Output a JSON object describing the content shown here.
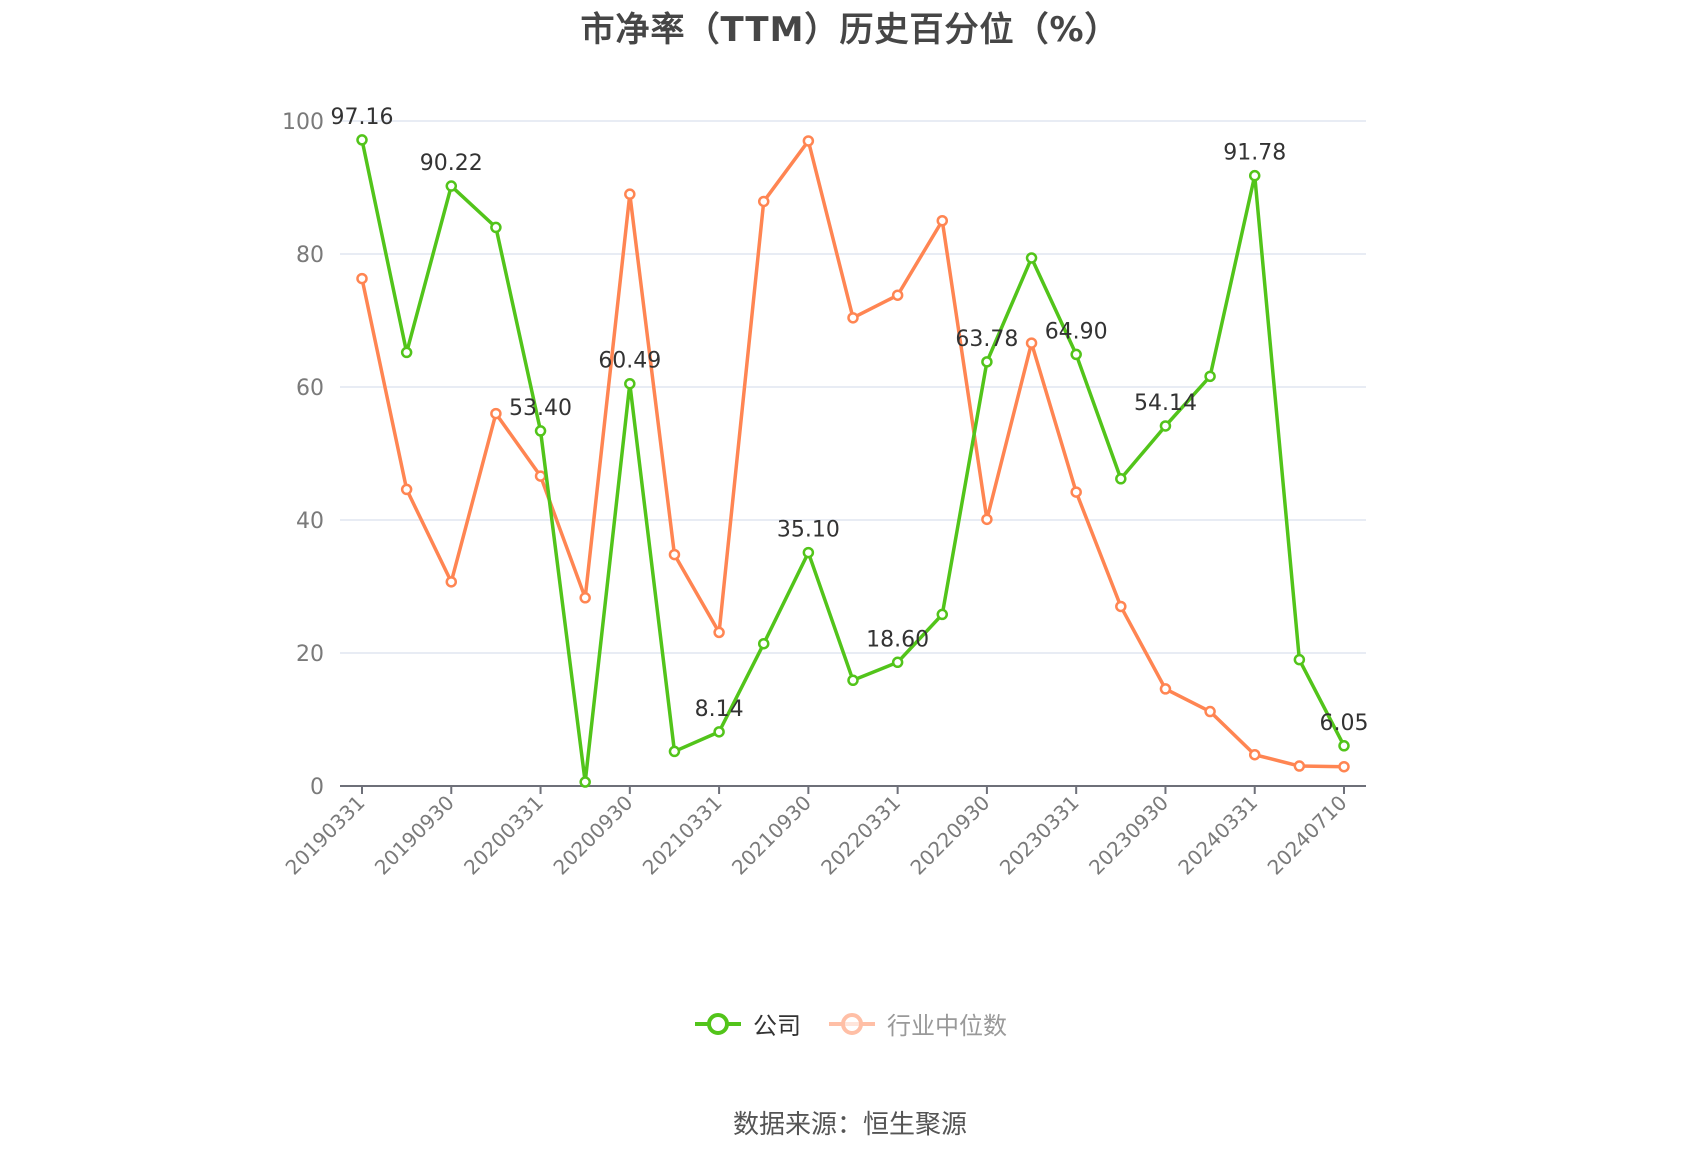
{
  "title": "市净率（TTM）历史百分位（%）",
  "legend": {
    "company_label": "公司",
    "industry_label": "行业中位数"
  },
  "source": "数据来源：恒生聚源",
  "colors": {
    "company": "#52c41a",
    "industry": "#ff8552",
    "industry_legend": "#ffbfa6",
    "grid": "#e0e6f1",
    "axis": "#6e7079"
  },
  "chart_data": {
    "type": "line",
    "title": "市净率（TTM）历史百分位（%）",
    "xlabel": "",
    "ylabel": "",
    "ylim": [
      0,
      100
    ],
    "yticks": [
      0,
      20,
      40,
      60,
      80,
      100
    ],
    "grid": true,
    "legend_position": "bottom",
    "x": [
      "20190331",
      "20190630",
      "20190930",
      "20191231",
      "20200331",
      "20200630",
      "20200930",
      "20201231",
      "20210331",
      "20210630",
      "20210930",
      "20211231",
      "20220331",
      "20220630",
      "20220930",
      "20221231",
      "20230331",
      "20230630",
      "20230930",
      "20231231",
      "20240331",
      "20240630",
      "20240710"
    ],
    "x_tick_labels": [
      "20190331",
      "20190930",
      "20200331",
      "20200930",
      "20210331",
      "20210930",
      "20220331",
      "20220930",
      "20230331",
      "20230930",
      "20240331",
      "20240710"
    ],
    "series": [
      {
        "name": "公司",
        "values": [
          97.16,
          65.2,
          90.22,
          84.0,
          53.4,
          0.6,
          60.49,
          5.2,
          8.14,
          21.4,
          35.1,
          15.9,
          18.6,
          25.8,
          63.78,
          79.4,
          64.9,
          46.2,
          54.14,
          61.6,
          91.78,
          19.0,
          6.05
        ],
        "labeled_indices": [
          0,
          2,
          4,
          6,
          8,
          10,
          12,
          14,
          16,
          18,
          20,
          22
        ]
      },
      {
        "name": "行业中位数",
        "values": [
          76.3,
          44.6,
          30.7,
          56.0,
          46.6,
          28.3,
          89.0,
          34.8,
          23.1,
          87.9,
          97.0,
          70.4,
          73.8,
          85.0,
          40.1,
          66.6,
          44.2,
          27.0,
          14.6,
          11.2,
          4.7,
          3.0,
          2.9
        ]
      }
    ],
    "source": "数据来源：恒生聚源"
  }
}
